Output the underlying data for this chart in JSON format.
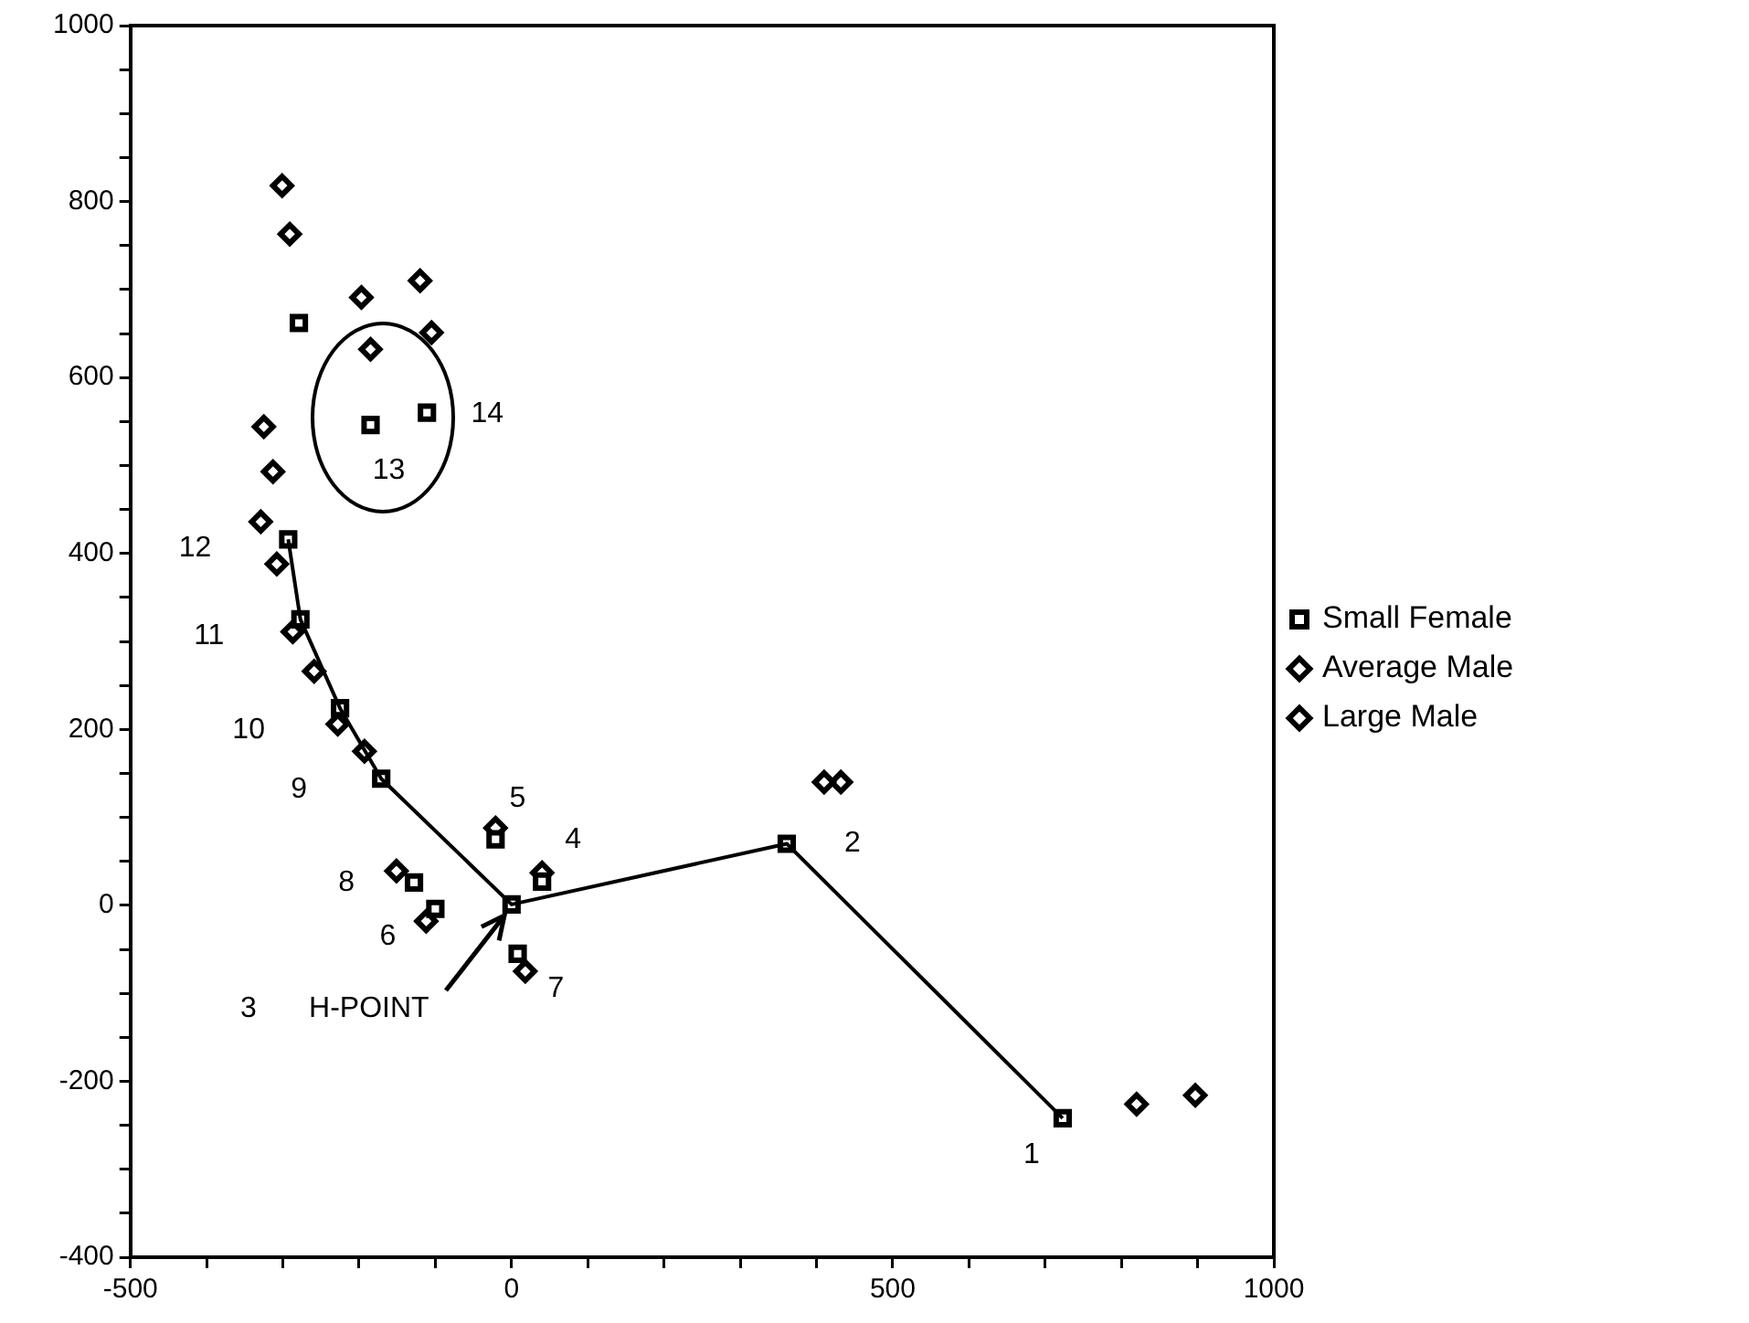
{
  "chart_data": {
    "type": "scatter",
    "xlim": [
      -500,
      1000
    ],
    "ylim": [
      -400,
      1000
    ],
    "xticks": [
      -500,
      {
        "value": -400,
        "label": null
      },
      {
        "value": -300,
        "label": null
      },
      {
        "value": -200,
        "label": null
      },
      {
        "value": -100,
        "label": null
      },
      0,
      {
        "value": 100,
        "label": null
      },
      {
        "value": 200,
        "label": null
      },
      {
        "value": 300,
        "label": null
      },
      {
        "value": 400,
        "label": null
      },
      500,
      {
        "value": 600,
        "label": null
      },
      {
        "value": 700,
        "label": null
      },
      {
        "value": 800,
        "label": null
      },
      {
        "value": 900,
        "label": null
      },
      1000
    ],
    "yticks": [
      -400,
      {
        "value": -350,
        "label": null
      },
      {
        "value": -300,
        "label": null
      },
      {
        "value": -250,
        "label": null
      },
      -200,
      {
        "value": -150,
        "label": null
      },
      {
        "value": -100,
        "label": null
      },
      {
        "value": -50,
        "label": null
      },
      0,
      {
        "value": 50,
        "label": null
      },
      {
        "value": 100,
        "label": null
      },
      {
        "value": 150,
        "label": null
      },
      200,
      {
        "value": 250,
        "label": null
      },
      {
        "value": 300,
        "label": null
      },
      {
        "value": 350,
        "label": null
      },
      400,
      {
        "value": 450,
        "label": null
      },
      {
        "value": 500,
        "label": null
      },
      {
        "value": 550,
        "label": null
      },
      600,
      {
        "value": 650,
        "label": null
      },
      {
        "value": 700,
        "label": null
      },
      {
        "value": 750,
        "label": null
      },
      800,
      {
        "value": 850,
        "label": null
      },
      {
        "value": 900,
        "label": null
      },
      {
        "value": 950,
        "label": null
      },
      1000
    ],
    "grid": false,
    "legend": "right",
    "series": [
      {
        "type": "line",
        "color": "#000000",
        "marker": "none",
        "x": [
          723,
          361,
          0,
          -171,
          -225,
          -277,
          -293
        ],
        "values": [
          -242,
          70,
          1,
          144,
          224,
          325,
          416
        ]
      },
      {
        "name": "Small Female",
        "color": "#000000",
        "marker": "square",
        "x": [
          723,
          361,
          0,
          40,
          -21,
          -100,
          8,
          -128,
          -171,
          -225,
          -277,
          -293,
          -185,
          -111,
          -279
        ],
        "values": [
          -242,
          70,
          1,
          27,
          75,
          -4,
          -55,
          26,
          144,
          224,
          325,
          416,
          546,
          560,
          662
        ]
      },
      {
        "name": "Average Male",
        "color": "#000000",
        "marker": "diamond",
        "x": [
          820,
          410,
          -21,
          18,
          -193,
          -259,
          -308,
          -313,
          -185,
          -105,
          -291
        ],
        "values": [
          -226,
          140,
          88,
          -75,
          175,
          266,
          388,
          493,
          632,
          651,
          763
        ]
      },
      {
        "name": "Large Male",
        "color": "#000000",
        "marker": "diamond",
        "x": [
          897,
          432,
          40,
          -112,
          -151,
          -228,
          -287,
          -329,
          -325,
          -197,
          -120,
          -301
        ],
        "values": [
          -216,
          140,
          37,
          -18,
          39,
          206,
          311,
          436,
          544,
          691,
          710,
          818
        ]
      }
    ],
    "annotations": [
      {
        "text": "1",
        "x": 723,
        "y": -242
      },
      {
        "text": "2",
        "x": 361,
        "y": 70
      },
      "3",
      {
        "text": "H-POINT",
        "x": 0,
        "y": 1
      },
      {
        "text": "4",
        "x": 40,
        "y": 27
      },
      {
        "text": "5",
        "x": -21,
        "y": 75
      },
      {
        "text": "6",
        "x": -100,
        "y": -4
      },
      {
        "text": "7",
        "x": 8,
        "y": -55
      },
      {
        "text": "8",
        "x": -128,
        "y": 26
      },
      {
        "text": "9",
        "x": -171,
        "y": 144
      },
      {
        "text": "10",
        "x": -225,
        "y": 224
      },
      {
        "text": "11",
        "x": -277,
        "y": 325
      },
      {
        "text": "12",
        "x": -293,
        "y": 416
      },
      {
        "text": "13",
        "x": -185,
        "y": 546
      },
      {
        "text": "14",
        "x": -111,
        "y": 560
      }
    ]
  }
}
